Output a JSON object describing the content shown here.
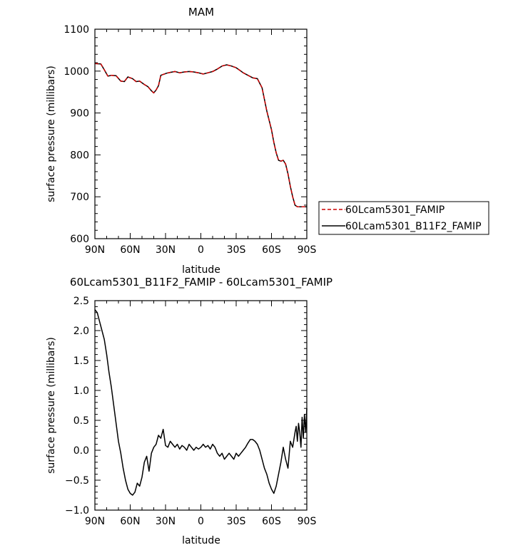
{
  "chart_data": [
    {
      "type": "line",
      "title": "MAM",
      "xlabel": "latitude",
      "ylabel": "surface pressure (millibars)",
      "xlim": [
        90,
        -90
      ],
      "ylim": [
        600,
        1100
      ],
      "x_tick_values": [
        90,
        60,
        30,
        0,
        -30,
        -60,
        -90
      ],
      "x_tick_labels": [
        "90N",
        "60N",
        "30N",
        "0",
        "30S",
        "60S",
        "90S"
      ],
      "y_tick_values": [
        600,
        700,
        800,
        900,
        1000,
        1100
      ],
      "y_tick_labels": [
        "600",
        "700",
        "800",
        "900",
        "1000",
        "1100"
      ],
      "legend_position": "right",
      "colors": {
        "series_0": "#cc0000",
        "series_1": "#000000"
      },
      "series": [
        {
          "name": "60Lcam5301_FAMIP",
          "style": "dashed",
          "x": [
            90,
            85,
            82,
            79,
            76,
            72,
            68,
            65,
            62,
            58,
            55,
            52,
            48,
            45,
            42,
            40,
            38,
            36,
            34,
            31,
            29,
            26,
            22,
            18,
            14,
            10,
            6,
            2,
            -2,
            -6,
            -10,
            -14,
            -18,
            -22,
            -26,
            -30,
            -33,
            -36,
            -40,
            -44,
            -48,
            -52,
            -56,
            -60,
            -62,
            -64,
            -66,
            -68,
            -70,
            -72,
            -74,
            -76,
            -78,
            -80,
            -82,
            -84,
            -86,
            -88,
            -90
          ],
          "y": [
            1018,
            1017,
            1003,
            988,
            990,
            989,
            976,
            975,
            986,
            982,
            975,
            976,
            968,
            963,
            953,
            948,
            955,
            965,
            990,
            993,
            995,
            997,
            999,
            996,
            998,
            999,
            998,
            996,
            993,
            996,
            999,
            1005,
            1012,
            1015,
            1012,
            1008,
            1002,
            996,
            990,
            984,
            982,
            960,
            905,
            860,
            830,
            805,
            787,
            785,
            787,
            778,
            755,
            725,
            700,
            680,
            676,
            676,
            676,
            676,
            676
          ]
        },
        {
          "name": "60Lcam5301_B11F2_FAMIP",
          "style": "solid",
          "x": [
            90,
            85,
            82,
            79,
            76,
            72,
            68,
            65,
            62,
            58,
            55,
            52,
            48,
            45,
            42,
            40,
            38,
            36,
            34,
            31,
            29,
            26,
            22,
            18,
            14,
            10,
            6,
            2,
            -2,
            -6,
            -10,
            -14,
            -18,
            -22,
            -26,
            -30,
            -33,
            -36,
            -40,
            -44,
            -48,
            -52,
            -56,
            -60,
            -62,
            -64,
            -66,
            -68,
            -70,
            -72,
            -74,
            -76,
            -78,
            -80,
            -82,
            -84,
            -86,
            -88,
            -90
          ],
          "y": [
            1018,
            1017,
            1003,
            988,
            990,
            989,
            976,
            975,
            986,
            982,
            975,
            976,
            968,
            963,
            953,
            948,
            955,
            965,
            990,
            993,
            995,
            997,
            999,
            996,
            998,
            999,
            998,
            996,
            993,
            996,
            999,
            1005,
            1012,
            1015,
            1012,
            1008,
            1002,
            996,
            990,
            984,
            982,
            960,
            905,
            860,
            830,
            805,
            787,
            785,
            787,
            778,
            755,
            725,
            700,
            680,
            676,
            676,
            676,
            676,
            676
          ]
        }
      ]
    },
    {
      "type": "line",
      "title": "60Lcam5301_B11F2_FAMIP - 60Lcam5301_FAMIP",
      "xlabel": "latitude",
      "ylabel": "surface pressure (millibars)",
      "xlim": [
        90,
        -90
      ],
      "ylim": [
        -1.0,
        2.5
      ],
      "x_tick_values": [
        90,
        60,
        30,
        0,
        -30,
        -60,
        -90
      ],
      "x_tick_labels": [
        "90N",
        "60N",
        "30N",
        "0",
        "30S",
        "60S",
        "90S"
      ],
      "y_tick_values": [
        -1.0,
        -0.5,
        0.0,
        0.5,
        1.0,
        1.5,
        2.0,
        2.5
      ],
      "y_tick_labels": [
        "−1.0",
        "−0.5",
        "0.0",
        "0.5",
        "1.0",
        "1.5",
        "2.0",
        "2.5"
      ],
      "colors": {
        "series_0": "#000000"
      },
      "series": [
        {
          "style": "solid",
          "x": [
            90,
            88,
            86,
            84,
            82,
            80,
            78,
            76,
            74,
            72,
            70,
            68,
            66,
            64,
            62,
            60,
            58,
            56,
            54,
            52,
            50,
            48,
            46,
            44,
            42,
            40,
            38,
            36,
            34,
            32,
            30,
            28,
            26,
            24,
            22,
            20,
            18,
            16,
            14,
            12,
            10,
            8,
            6,
            4,
            2,
            0,
            -2,
            -4,
            -6,
            -8,
            -10,
            -12,
            -14,
            -16,
            -18,
            -20,
            -22,
            -24,
            -26,
            -28,
            -30,
            -32,
            -34,
            -36,
            -38,
            -40,
            -42,
            -44,
            -46,
            -48,
            -50,
            -52,
            -54,
            -56,
            -58,
            -60,
            -62,
            -64,
            -66,
            -68,
            -70,
            -72,
            -74,
            -76,
            -78,
            -80,
            -81,
            -82,
            -83,
            -84,
            -85,
            -86,
            -87,
            -88,
            -89,
            -90
          ],
          "y": [
            2.35,
            2.3,
            2.15,
            2.0,
            1.85,
            1.6,
            1.3,
            1.05,
            0.75,
            0.45,
            0.15,
            -0.05,
            -0.3,
            -0.5,
            -0.65,
            -0.72,
            -0.75,
            -0.7,
            -0.55,
            -0.6,
            -0.45,
            -0.2,
            -0.1,
            -0.35,
            -0.05,
            0.05,
            0.1,
            0.25,
            0.2,
            0.35,
            0.08,
            0.05,
            0.15,
            0.1,
            0.05,
            0.1,
            0.02,
            0.08,
            0.05,
            0.0,
            0.1,
            0.05,
            0.0,
            0.05,
            0.02,
            0.05,
            0.1,
            0.05,
            0.08,
            0.02,
            0.1,
            0.05,
            -0.05,
            -0.1,
            -0.05,
            -0.15,
            -0.1,
            -0.05,
            -0.1,
            -0.15,
            -0.05,
            -0.1,
            -0.05,
            0.0,
            0.05,
            0.12,
            0.18,
            0.18,
            0.15,
            0.1,
            0.0,
            -0.15,
            -0.3,
            -0.4,
            -0.55,
            -0.65,
            -0.72,
            -0.6,
            -0.4,
            -0.2,
            0.05,
            -0.15,
            -0.3,
            0.15,
            0.05,
            0.3,
            0.4,
            0.15,
            0.45,
            0.3,
            0.05,
            0.55,
            0.2,
            0.6,
            0.3,
            0.7
          ]
        }
      ]
    }
  ]
}
